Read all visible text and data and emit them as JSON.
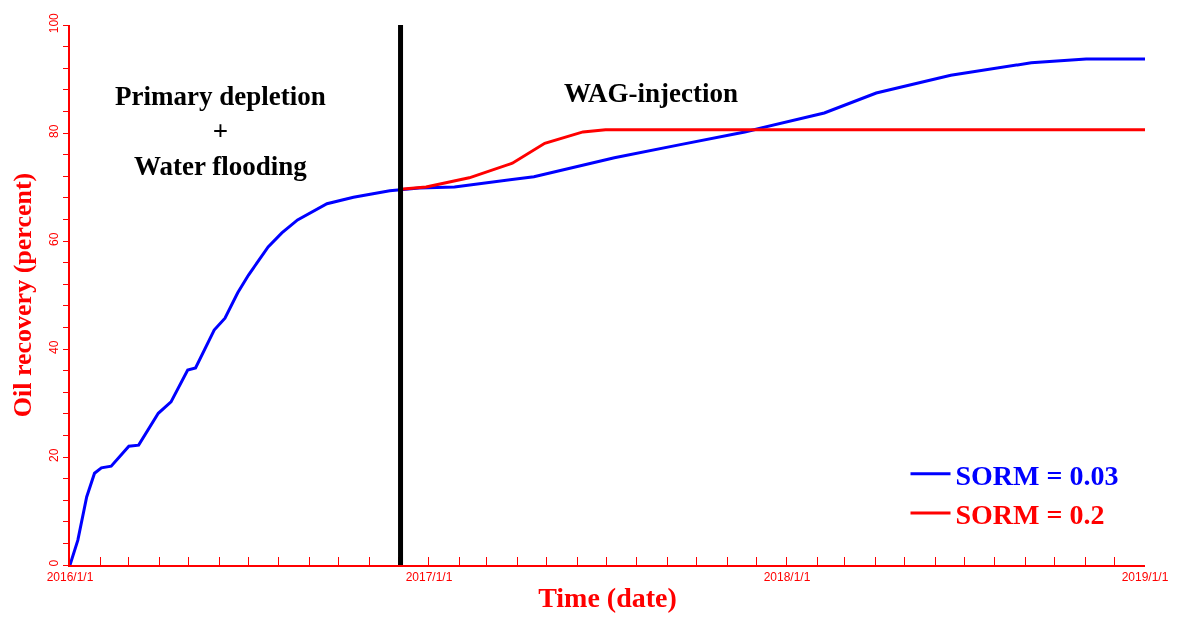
{
  "chart_data": {
    "type": "line",
    "xlabel": "Time (date)",
    "ylabel": "Oil recovery (percent)",
    "annotations": [
      "Primary depletion\n+\nWater flooding",
      "WAG-injection"
    ],
    "series": [
      {
        "name": "SORM = 0.03",
        "color": "#0000ff",
        "x": [
          "2016-01-01",
          "2016-01-09",
          "2016-01-18",
          "2016-01-26",
          "2016-02-02",
          "2016-02-12",
          "2016-03-01",
          "2016-03-11",
          "2016-03-31",
          "2016-04-13",
          "2016-04-30",
          "2016-05-08",
          "2016-05-27",
          "2016-06-07",
          "2016-06-20",
          "2016-07-01",
          "2016-07-21",
          "2016-08-04",
          "2016-08-20",
          "2016-09-19",
          "2016-10-16",
          "2016-11-22",
          "2016-12-22",
          "2017-01-27",
          "2017-04-18",
          "2017-07-09",
          "2017-09-13",
          "2017-11-19",
          "2018-02-08",
          "2018-04-02",
          "2018-06-17",
          "2018-09-07",
          "2018-11-02",
          "2019-01-01"
        ],
        "values": [
          0,
          4.6,
          12.6,
          17,
          18,
          18.3,
          22,
          22.2,
          28.1,
          30.2,
          36.1,
          36.5,
          43.5,
          45.7,
          50.4,
          53.7,
          58.9,
          61.5,
          63.9,
          66.9,
          68.1,
          69.3,
          69.8,
          70,
          71.9,
          75.4,
          77.8,
          80.2,
          83.7,
          87.4,
          90.7,
          93,
          93.7,
          93.7
        ]
      },
      {
        "name": "SORM = 0.2",
        "color": "#ff0000",
        "x": [
          "2016-12-03",
          "2016-12-29",
          "2017-02-11",
          "2017-03-27",
          "2017-04-29",
          "2017-06-07",
          "2017-06-30",
          "2019-01-01"
        ],
        "values": [
          69.6,
          70,
          71.7,
          74.4,
          78.1,
          80.2,
          80.6,
          80.6
        ]
      }
    ],
    "xlim": [
      "2016-01-01",
      "2019-01-01"
    ],
    "xticks": [
      {
        "value": "2016-01-01",
        "label": "2016/1/1"
      },
      {
        "value": "2016-02-01",
        "label": null
      },
      {
        "value": "2016-03-01",
        "label": null
      },
      {
        "value": "2016-04-01",
        "label": null
      },
      {
        "value": "2016-05-01",
        "label": null
      },
      {
        "value": "2016-06-01",
        "label": null
      },
      {
        "value": "2016-07-01",
        "label": null
      },
      {
        "value": "2016-08-01",
        "label": null
      },
      {
        "value": "2016-09-01",
        "label": null
      },
      {
        "value": "2016-10-01",
        "label": null
      },
      {
        "value": "2016-11-01",
        "label": null
      },
      {
        "value": "2016-12-01",
        "label": null
      },
      {
        "value": "2017-01-01",
        "label": "2017/1/1"
      },
      {
        "value": "2017-02-01",
        "label": null
      },
      {
        "value": "2017-03-01",
        "label": null
      },
      {
        "value": "2017-04-01",
        "label": null
      },
      {
        "value": "2017-05-01",
        "label": null
      },
      {
        "value": "2017-06-01",
        "label": null
      },
      {
        "value": "2017-07-01",
        "label": null
      },
      {
        "value": "2017-08-01",
        "label": null
      },
      {
        "value": "2017-09-01",
        "label": null
      },
      {
        "value": "2017-10-01",
        "label": null
      },
      {
        "value": "2017-11-01",
        "label": null
      },
      {
        "value": "2017-12-01",
        "label": null
      },
      {
        "value": "2018-01-01",
        "label": "2018/1/1"
      },
      {
        "value": "2018-02-01",
        "label": null
      },
      {
        "value": "2018-03-01",
        "label": null
      },
      {
        "value": "2018-04-01",
        "label": null
      },
      {
        "value": "2018-05-01",
        "label": null
      },
      {
        "value": "2018-06-01",
        "label": null
      },
      {
        "value": "2018-07-01",
        "label": null
      },
      {
        "value": "2018-08-01",
        "label": null
      },
      {
        "value": "2018-09-01",
        "label": null
      },
      {
        "value": "2018-10-01",
        "label": null
      },
      {
        "value": "2018-11-01",
        "label": null
      },
      {
        "value": "2018-12-01",
        "label": null
      },
      {
        "value": "2019-01-01",
        "label": "2019/1/1"
      }
    ],
    "ylim": [
      0,
      100
    ],
    "yticks": [
      0,
      {
        "value": 4,
        "label": null
      },
      {
        "value": 8,
        "label": null
      },
      {
        "value": 12,
        "label": null
      },
      {
        "value": 16,
        "label": null
      },
      20,
      {
        "value": 24,
        "label": null
      },
      {
        "value": 28,
        "label": null
      },
      {
        "value": 32,
        "label": null
      },
      {
        "value": 36,
        "label": null
      },
      40,
      {
        "value": 44,
        "label": null
      },
      {
        "value": 48,
        "label": null
      },
      {
        "value": 52,
        "label": null
      },
      {
        "value": 56,
        "label": null
      },
      60,
      {
        "value": 64,
        "label": null
      },
      {
        "value": 68,
        "label": null
      },
      {
        "value": 72,
        "label": null
      },
      {
        "value": 76,
        "label": null
      },
      80,
      {
        "value": 84,
        "label": null
      },
      {
        "value": 88,
        "label": null
      },
      {
        "value": 92,
        "label": null
      },
      {
        "value": 96,
        "label": null
      },
      100
    ],
    "ref_lines": [
      {
        "axis": "x",
        "value": "2016-12-03",
        "color": "#000000",
        "line_style": "solid"
      }
    ],
    "legend": "bottom right",
    "line_style": "solid"
  }
}
